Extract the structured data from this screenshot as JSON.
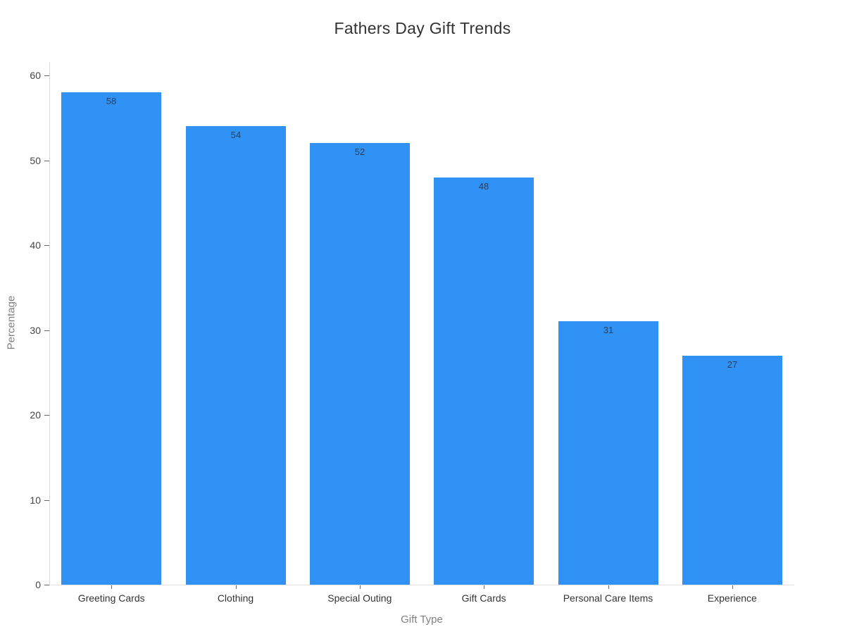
{
  "chart_data": {
    "type": "bar",
    "title": "Fathers Day Gift Trends",
    "xlabel": "Gift Type",
    "ylabel": "Percentage",
    "categories": [
      "Greeting Cards",
      "Clothing",
      "Special Outing",
      "Gift Cards",
      "Personal Care Items",
      "Experience"
    ],
    "values": [
      58,
      54,
      52,
      48,
      31,
      27
    ],
    "ylim": [
      0,
      60
    ],
    "yticks": [
      0,
      10,
      20,
      30,
      40,
      50,
      60
    ],
    "grid": false,
    "legend_position": "none",
    "bar_color": "#2f92f4",
    "value_label_color": "#2a3f5f",
    "tick_label_color": "#444444",
    "axis_title_color": "#808080",
    "axis_line_color": "#d9d9d9",
    "background_color": "#ffffff"
  }
}
